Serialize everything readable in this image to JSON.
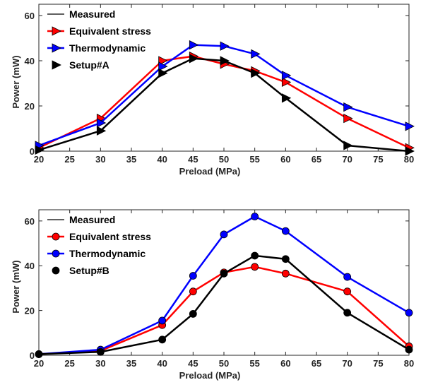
{
  "chart_data": [
    {
      "type": "line",
      "xlabel": "Preload (MPa)",
      "ylabel": "Power (mW)",
      "xlim": [
        20,
        80
      ],
      "ylim": [
        0,
        65
      ],
      "xticks": [
        20,
        25,
        30,
        35,
        40,
        45,
        50,
        55,
        60,
        65,
        70,
        75,
        80
      ],
      "yticks": [
        0,
        20,
        40,
        60
      ],
      "grid": false,
      "legend_position": "top-left",
      "marker": "triangle-right",
      "legend": [
        "Measured",
        "Equivalent stress",
        "Thermodynamic",
        "Setup#A"
      ],
      "legend_colors": [
        "#000000",
        "#ff0000",
        "#0000ff",
        "#000000"
      ],
      "series": [
        {
          "name": "Equivalent stress",
          "color": "#ff0000",
          "x": [
            20,
            30,
            40,
            45,
            50,
            55,
            60,
            70,
            80
          ],
          "y": [
            1.5,
            14.5,
            40,
            42,
            38.5,
            35.5,
            30.5,
            14.5,
            1.5
          ]
        },
        {
          "name": "Thermodynamic",
          "color": "#0000ff",
          "x": [
            20,
            30,
            40,
            45,
            50,
            55,
            60,
            70,
            80
          ],
          "y": [
            2.5,
            12.5,
            37.5,
            47,
            46.5,
            43,
            33.5,
            19.5,
            11
          ]
        },
        {
          "name": "Measured",
          "color": "#000000",
          "x": [
            20,
            30,
            40,
            45,
            50,
            55,
            60,
            70,
            80
          ],
          "y": [
            0.5,
            9,
            34.5,
            41,
            40,
            34.5,
            23.5,
            2.5,
            0
          ]
        }
      ]
    },
    {
      "type": "line",
      "xlabel": "Preload (MPa)",
      "ylabel": "Power (mW)",
      "xlim": [
        20,
        80
      ],
      "ylim": [
        0,
        65
      ],
      "xticks": [
        20,
        25,
        30,
        35,
        40,
        45,
        50,
        55,
        60,
        65,
        70,
        75,
        80
      ],
      "yticks": [
        0,
        20,
        40,
        60
      ],
      "grid": false,
      "legend_position": "top-left",
      "marker": "circle",
      "legend": [
        "Measured",
        "Equivalent stress",
        "Thermodynamic",
        "Setup#B"
      ],
      "legend_colors": [
        "#000000",
        "#ff0000",
        "#0000ff",
        "#000000"
      ],
      "series": [
        {
          "name": "Equivalent stress",
          "color": "#ff0000",
          "x": [
            20,
            30,
            40,
            45,
            50,
            55,
            60,
            70,
            80
          ],
          "y": [
            0.5,
            2,
            13.5,
            28.5,
            37,
            39.5,
            36.5,
            28.5,
            4
          ]
        },
        {
          "name": "Thermodynamic",
          "color": "#0000ff",
          "x": [
            20,
            30,
            40,
            45,
            50,
            55,
            60,
            70,
            80
          ],
          "y": [
            0.5,
            2.5,
            15.5,
            35.5,
            54,
            62,
            55.5,
            35,
            19
          ]
        },
        {
          "name": "Measured",
          "color": "#000000",
          "x": [
            20,
            30,
            40,
            45,
            50,
            55,
            60,
            70,
            80
          ],
          "y": [
            0.5,
            1.5,
            7,
            18.5,
            36.5,
            44.5,
            43,
            19,
            2.5
          ]
        }
      ]
    }
  ]
}
